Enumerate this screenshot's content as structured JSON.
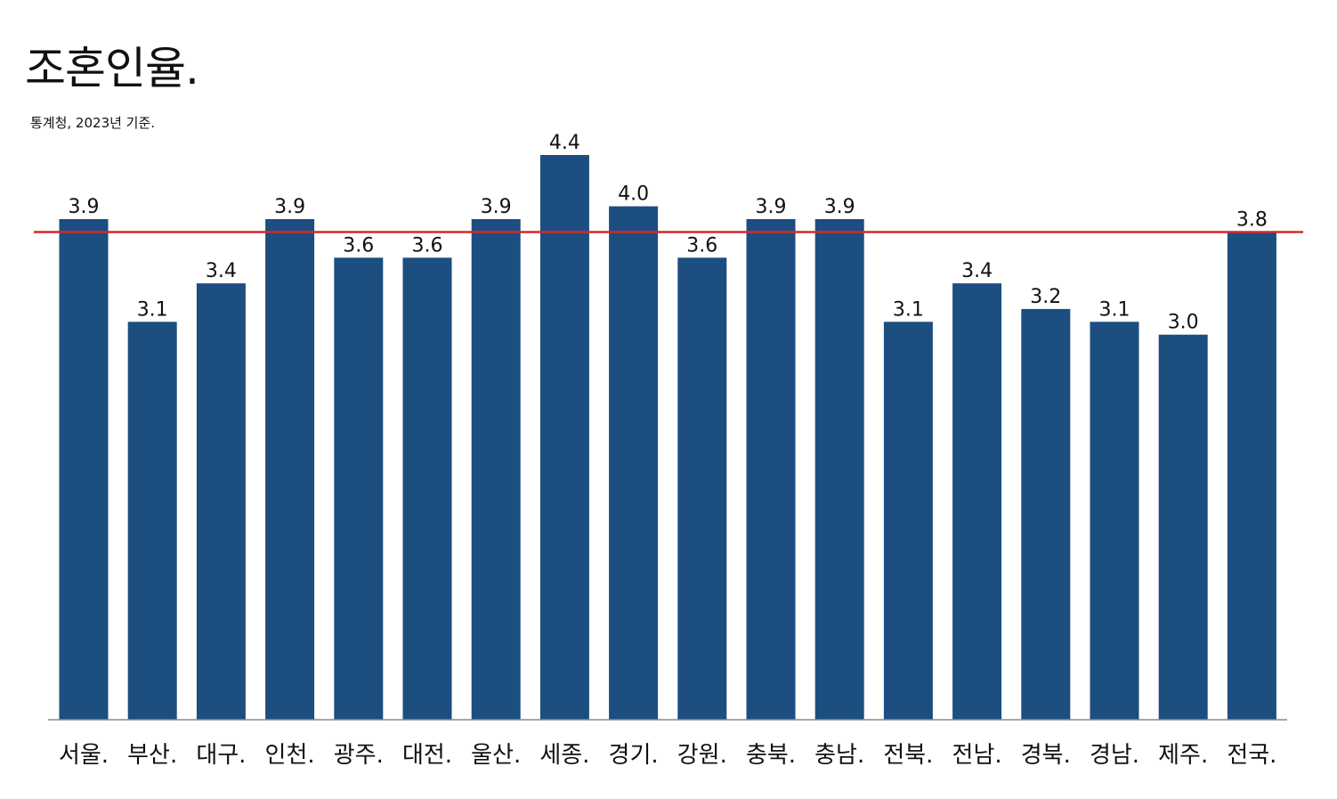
{
  "chart_data": {
    "type": "bar",
    "title": "조혼인율.",
    "subtitle": "통계청, 2023년 기준.",
    "xlabel": "",
    "ylabel": "",
    "categories": [
      "서울.",
      "부산.",
      "대구.",
      "인천.",
      "광주.",
      "대전.",
      "울산.",
      "세종.",
      "경기.",
      "강원.",
      "충북.",
      "충남.",
      "전북.",
      "전남.",
      "경북.",
      "경남.",
      "제주.",
      "전국."
    ],
    "values": [
      3.9,
      3.1,
      3.4,
      3.9,
      3.6,
      3.6,
      3.9,
      4.4,
      4.0,
      3.6,
      3.9,
      3.9,
      3.1,
      3.4,
      3.2,
      3.1,
      3.0,
      3.8
    ],
    "value_labels": [
      "3.9",
      "3.1",
      "3.4",
      "3.9",
      "3.6",
      "3.6",
      "3.9",
      "4.4",
      "4.0",
      "3.6",
      "3.9",
      "3.9",
      "3.1",
      "3.4",
      "3.2",
      "3.1",
      "3.0",
      "3.8"
    ],
    "ylim": [
      0,
      4.4
    ],
    "reference_line": {
      "value": 3.8,
      "color": "#d42a2a"
    },
    "grid": false,
    "bar_color": "#1c4e80"
  }
}
